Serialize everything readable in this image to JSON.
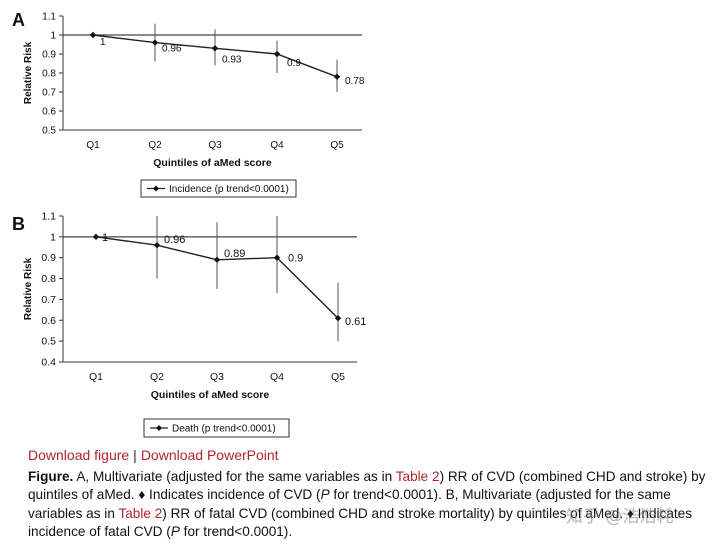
{
  "chart_data": [
    {
      "panel_label": "A",
      "type": "line",
      "categories": [
        "Q1",
        "Q2",
        "Q3",
        "Q4",
        "Q5"
      ],
      "series": [
        {
          "name": "Incidence (p trend<0.0001)",
          "values": [
            1,
            0.96,
            0.93,
            0.9,
            0.78
          ]
        }
      ],
      "data_labels": [
        "1",
        "0.96",
        "0.93",
        "0.9",
        "0.78"
      ],
      "error_bars": [
        [
          1,
          1
        ],
        [
          0.86,
          1.06
        ],
        [
          0.84,
          1.03
        ],
        [
          0.8,
          0.97
        ],
        [
          0.7,
          0.87
        ]
      ],
      "reference_line": 1,
      "xlabel": "Quintiles of aMed score",
      "ylabel": "Relative Risk",
      "ylim": [
        0.5,
        1.1
      ],
      "yticks": [
        "0.5",
        "0.6",
        "0.7",
        "0.8",
        "0.9",
        "1",
        "1.1"
      ],
      "legend": "bottom"
    },
    {
      "panel_label": "B",
      "type": "line",
      "categories": [
        "Q1",
        "Q2",
        "Q3",
        "Q4",
        "Q5"
      ],
      "series": [
        {
          "name": "Death (p trend<0.0001)",
          "values": [
            1,
            0.96,
            0.89,
            0.9,
            0.61
          ]
        }
      ],
      "data_labels": [
        "1",
        "0.96",
        "0.89",
        "0.9",
        "0.61"
      ],
      "error_bars": [
        [
          1,
          1
        ],
        [
          0.8,
          1.1
        ],
        [
          0.75,
          1.07
        ],
        [
          0.73,
          1.1
        ],
        [
          0.5,
          0.78
        ]
      ],
      "reference_line": 1,
      "xlabel": "Quintiles of aMed score",
      "ylabel": "Relative Risk",
      "ylim": [
        0.4,
        1.1
      ],
      "yticks": [
        "0.4",
        "0.5",
        "0.6",
        "0.7",
        "0.8",
        "0.9",
        "1",
        "1.1"
      ],
      "legend": "bottom"
    }
  ],
  "links": {
    "download_figure": "Download figure",
    "separator": "|",
    "download_ppt": "Download PowerPoint"
  },
  "caption": {
    "label": "Figure.",
    "part1": " A, Multivariate (adjusted for the same variables as in ",
    "table_link_1": "Table 2",
    "part2": ") RR of CVD (combined CHD and stroke) by quintiles of aMed. ♦ Indicates incidence of CVD (",
    "p1": "P",
    "part3": " for trend<0.0001). B, Multivariate (adjusted for the same variables as in ",
    "table_link_2": "Table 2",
    "part4": ") RR of fatal CVD (combined CHD and stroke mortality) by quintiles of aMed. ♦ Indicates incidence of fatal CVD (",
    "p2": "P",
    "part5": " for trend<0.0001)."
  },
  "watermark": "知乎 @浩浩耗"
}
